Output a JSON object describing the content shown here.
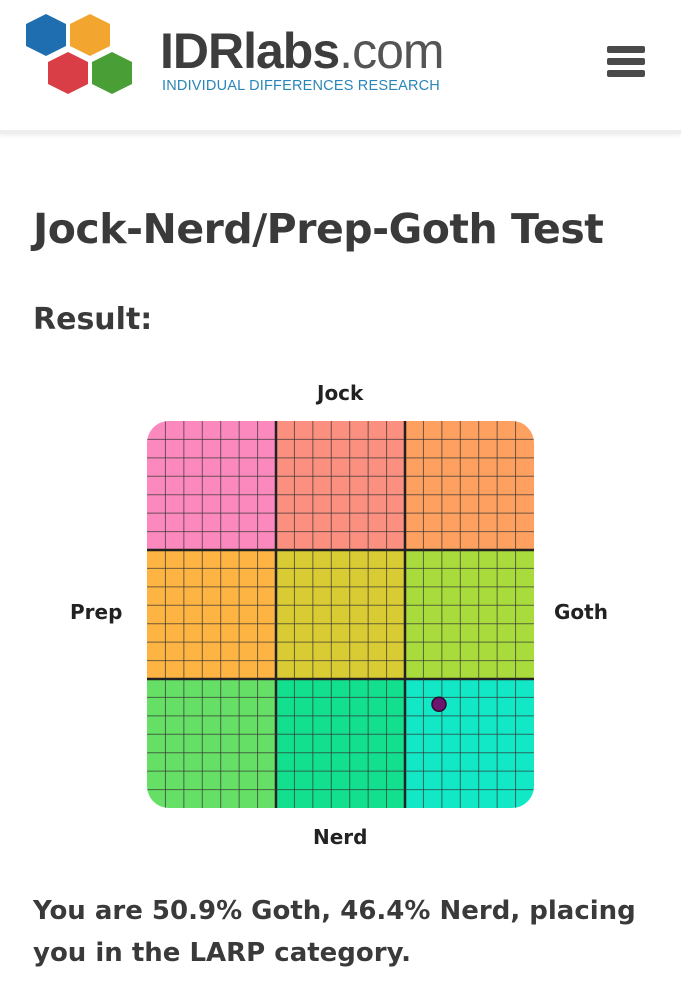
{
  "header": {
    "logo_main": "IDRlabs",
    "logo_suffix": ".com",
    "logo_tagline": "INDIVIDUAL DIFFERENCES RESEARCH",
    "menu_icon": "hamburger-menu-icon"
  },
  "page": {
    "title": "Jock-Nerd/Prep-Goth Test",
    "result_label": "Result:",
    "summary": "You are 50.9% Goth, 46.4% Nerd, placing you in the LARP category."
  },
  "chart_data": {
    "type": "scatter",
    "labels": {
      "top": "Jock",
      "bottom": "Nerd",
      "left": "Prep",
      "right": "Goth"
    },
    "x_axis": {
      "negative": "Prep",
      "positive": "Goth",
      "range": [
        -100,
        100
      ]
    },
    "y_axis": {
      "negative": "Nerd",
      "positive": "Jock",
      "range": [
        -100,
        100
      ]
    },
    "grid": true,
    "regions": [
      [
        "#fb89bd",
        "#fb8f80",
        "#fda060"
      ],
      [
        "#fdb442",
        "#d9cb33",
        "#a9db3d"
      ],
      [
        "#66df66",
        "#12e08e",
        "#12e8c6"
      ]
    ],
    "points": [
      {
        "x": 50.9,
        "y": -46.4,
        "color": "#6e1470"
      }
    ]
  }
}
